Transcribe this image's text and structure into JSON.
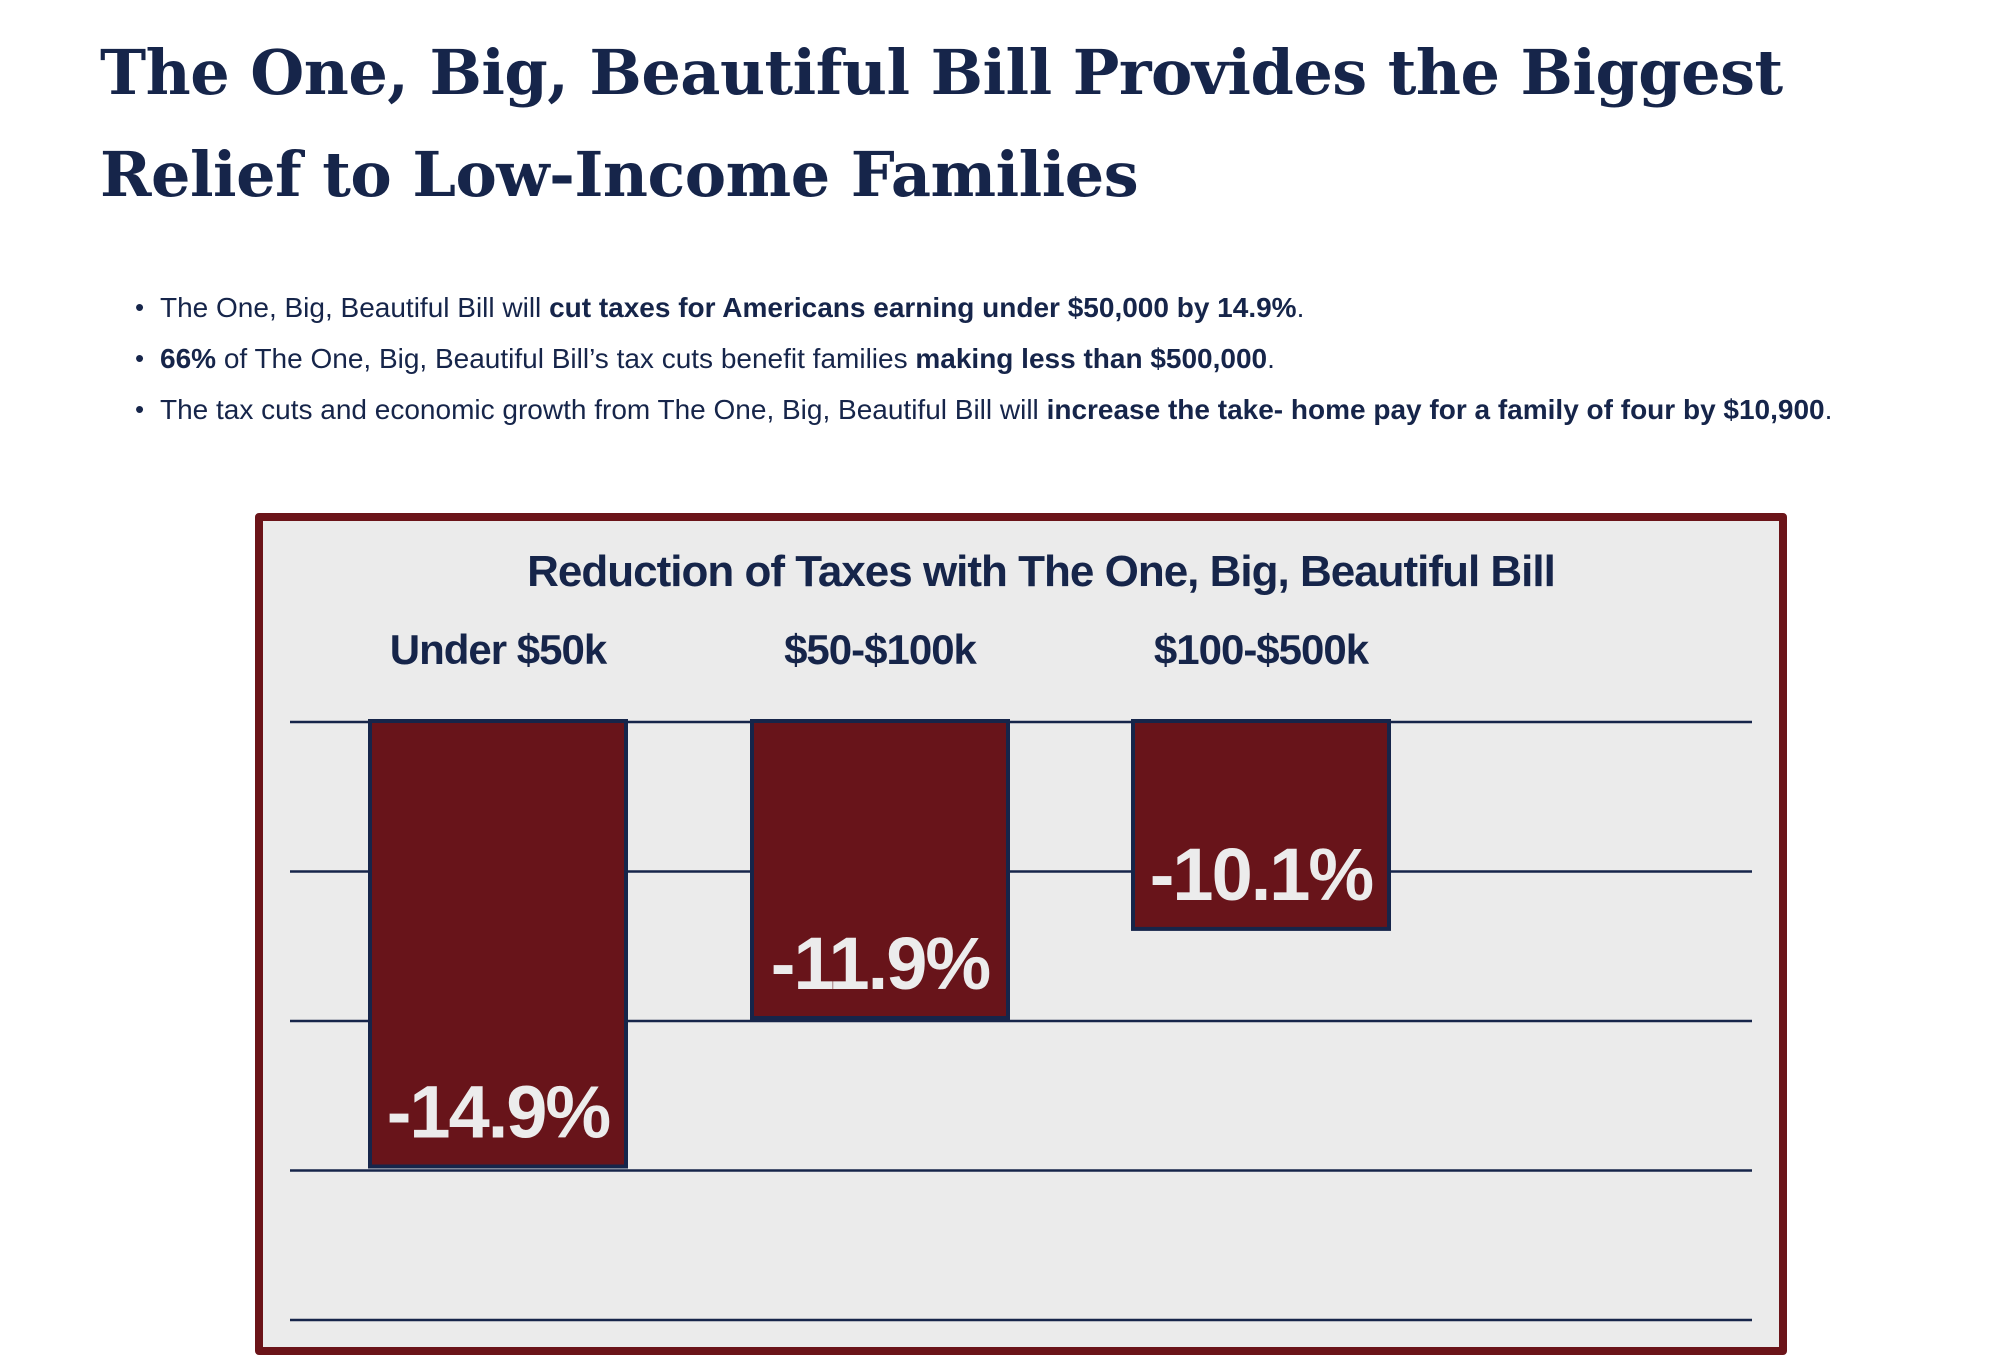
{
  "page": {
    "title": "The One, Big, Beautiful Bill Provides the Biggest Relief to Low-Income Families",
    "bullets": [
      {
        "segments": [
          {
            "text": "The One, Big, Beautiful Bill will ",
            "bold": false
          },
          {
            "text": "cut taxes for Americans earning under $50,000 by 14.9%",
            "bold": true
          },
          {
            "text": ".",
            "bold": false
          }
        ]
      },
      {
        "segments": [
          {
            "text": "66%",
            "bold": true
          },
          {
            "text": " of The One, Big, Beautiful Bill’s tax cuts benefit families ",
            "bold": false
          },
          {
            "text": "making less than $500,000",
            "bold": true
          },
          {
            "text": ".",
            "bold": false
          }
        ]
      },
      {
        "segments": [
          {
            "text": "The tax cuts and economic growth from The One, Big, Beautiful Bill will ",
            "bold": false
          },
          {
            "text": "increase the take- home pay for a family of four by $10,900",
            "bold": true
          },
          {
            "text": ".",
            "bold": false
          }
        ]
      }
    ]
  },
  "colors": {
    "text": "#16254a",
    "bar_fill": "#68141a",
    "bar_border": "#16254a",
    "frame_border": "#6b1419",
    "chart_bg": "#ebebeb",
    "value_label": "#ececec"
  },
  "chart_data": {
    "type": "bar",
    "title": "Reduction of Taxes with The One, Big, Beautiful Bill",
    "categories": [
      "Under $50k",
      "$50-$100k",
      "$100-$500k"
    ],
    "values": [
      -14.9,
      -11.9,
      -10.1
    ],
    "data_labels": [
      "-14.9%",
      "-11.9%",
      "-10.1%"
    ],
    "xlabel": "",
    "ylabel": "",
    "grid": true,
    "legend": "none",
    "orientation": "bars hang downward from top gridline"
  }
}
